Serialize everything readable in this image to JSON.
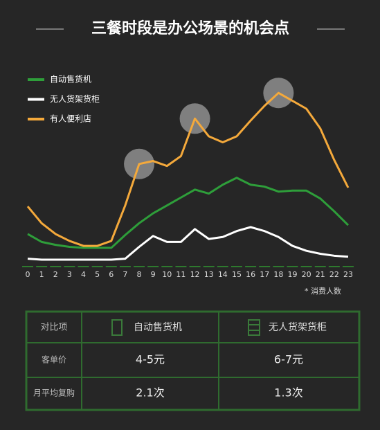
{
  "chart_data": {
    "type": "line",
    "title": "三餐时段是办公场景的机会点",
    "categories": [
      "0",
      "1",
      "2",
      "3",
      "4",
      "5",
      "6",
      "7",
      "8",
      "9",
      "10",
      "11",
      "12",
      "13",
      "14",
      "15",
      "16",
      "17",
      "18",
      "19",
      "20",
      "21",
      "22",
      "23"
    ],
    "series": [
      {
        "name": "自动售货机",
        "color": "#2e9e3a",
        "values": [
          16.5,
          12.5,
          11,
          10,
          9.5,
          9.5,
          9.5,
          16,
          22,
          27,
          31,
          35,
          39,
          37,
          41.5,
          45,
          41.5,
          40.5,
          38,
          38.5,
          38.5,
          34.5,
          28,
          21
        ]
      },
      {
        "name": "无人货架货柜",
        "color": "#ffffff",
        "values": [
          4,
          3.5,
          3.5,
          3.5,
          3.5,
          3.5,
          3.5,
          4,
          10,
          15.5,
          12.5,
          12.5,
          19,
          14,
          15,
          18,
          20,
          18,
          15,
          10.5,
          8,
          6.5,
          5.5,
          5
        ]
      },
      {
        "name": "有人便利店",
        "color": "#f4a93b",
        "values": [
          30.5,
          22,
          16.5,
          13,
          10.5,
          10.5,
          13,
          31,
          52,
          53.5,
          51,
          56,
          75,
          66,
          63,
          66,
          74,
          81.5,
          88,
          84,
          80,
          70,
          54,
          40
        ]
      }
    ],
    "highlight_categories": [
      "8",
      "12",
      "18"
    ],
    "ylim": [
      0,
      100
    ],
    "annotation": "* 消费人数"
  },
  "table": {
    "rows": [
      [
        "对比项",
        "自动售货机",
        "无人货架货柜"
      ],
      [
        "客单价",
        "4-5元",
        "6-7元"
      ],
      [
        "月平均复购",
        "2.1次",
        "1.3次"
      ]
    ]
  }
}
